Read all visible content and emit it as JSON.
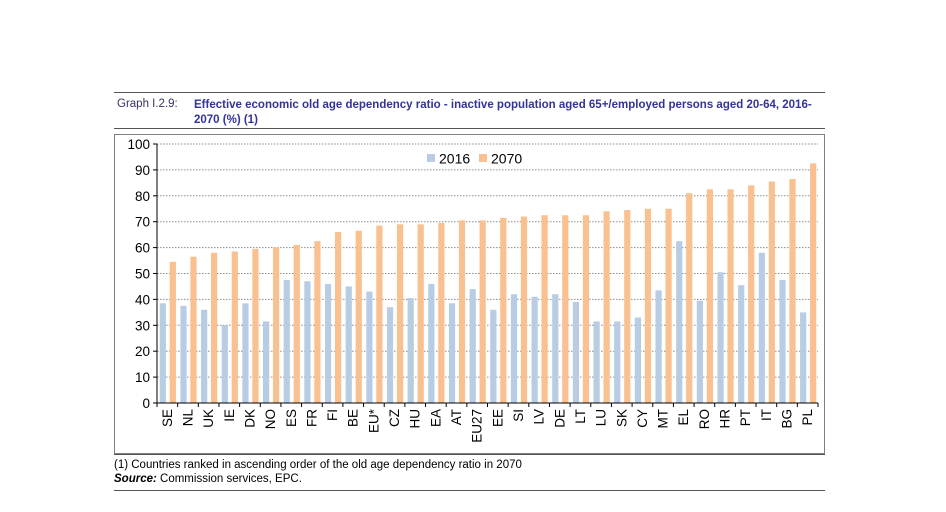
{
  "header": {
    "graph_label": "Graph I.2.9:",
    "title": "Effective economic old age dependency ratio - inactive population aged 65+/employed persons aged 20-64, 2016-2070 (%) (1)"
  },
  "footer": {
    "note": "(1) Countries ranked in ascending order of the old age dependency ratio in 2070",
    "source_label": "Source:",
    "source_text": " Commission services, EPC."
  },
  "chart_data": {
    "type": "bar",
    "title": "Effective economic old age dependency ratio - inactive population aged 65+/employed persons aged 20-64, 2016-2070 (%) (1)",
    "xlabel": "",
    "ylabel": "",
    "ylim": [
      0,
      100
    ],
    "yticks": [
      0,
      10,
      20,
      30,
      40,
      50,
      60,
      70,
      80,
      90,
      100
    ],
    "grid": true,
    "legend_position": "top-center",
    "categories": [
      "SE",
      "NL",
      "UK",
      "IE",
      "DK",
      "NO",
      "ES",
      "FR",
      "FI",
      "BE",
      "EU*",
      "CZ",
      "HU",
      "EA",
      "AT",
      "EU27",
      "EE",
      "SI",
      "LV",
      "DE",
      "LT",
      "LU",
      "SK",
      "CY",
      "MT",
      "EL",
      "RO",
      "HR",
      "PT",
      "IT",
      "BG",
      "PL"
    ],
    "series": [
      {
        "name": "2016",
        "color": "#b8cce4",
        "values": [
          38.5,
          37.5,
          36,
          30,
          38.5,
          31.5,
          47.5,
          47,
          46,
          45,
          43,
          37,
          40.5,
          46,
          38.5,
          44,
          36,
          42,
          41,
          42,
          39,
          31.5,
          31.5,
          33,
          43.5,
          62.5,
          39.5,
          50.5,
          45.5,
          58,
          47.5,
          35
        ]
      },
      {
        "name": "2070",
        "color": "#fac090",
        "values": [
          54.5,
          56.5,
          58,
          58.5,
          59.5,
          60,
          61,
          62.5,
          66,
          66.5,
          68.5,
          69,
          69,
          69.5,
          70.5,
          70.5,
          71.5,
          72,
          72.5,
          72.5,
          72.5,
          74,
          74.5,
          75,
          75,
          81,
          82.5,
          82.5,
          84,
          85.5,
          86.5,
          92.5
        ]
      }
    ]
  }
}
